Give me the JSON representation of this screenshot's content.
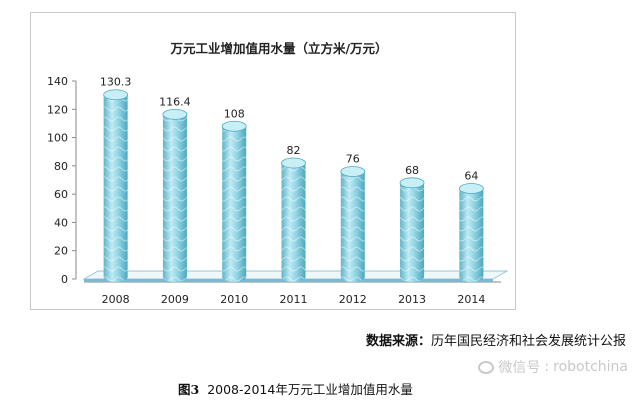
{
  "chart_data": {
    "type": "bar",
    "title": "万元工业增加值用水量（立方米/万元）",
    "categories": [
      "2008",
      "2009",
      "2010",
      "2011",
      "2012",
      "2013",
      "2014"
    ],
    "values": [
      130.3,
      116.4,
      108,
      82,
      76,
      68,
      64
    ],
    "data_labels": [
      "130.3",
      "116.4",
      "108",
      "82",
      "76",
      "68",
      "64"
    ],
    "yticks": [
      "0",
      "20",
      "40",
      "60",
      "80",
      "100",
      "120",
      "140"
    ],
    "ylim": [
      0,
      140
    ],
    "xlabel": "",
    "ylabel": "",
    "grid": false,
    "legend": "none",
    "bar_color": "#8fd3e3",
    "bar_shadow_color": "#4fa9bf",
    "floor_color": "#7fb8cf"
  },
  "source": {
    "label": "数据来源：",
    "text": "历年国民经济和社会发展统计公报"
  },
  "watermark": {
    "label": "微信号",
    "separator": ":",
    "handle": "robotchina",
    "icon": "wechat-icon"
  },
  "caption": {
    "figure_number": "图3",
    "text": "2008-2014年万元工业增加值用水量"
  }
}
